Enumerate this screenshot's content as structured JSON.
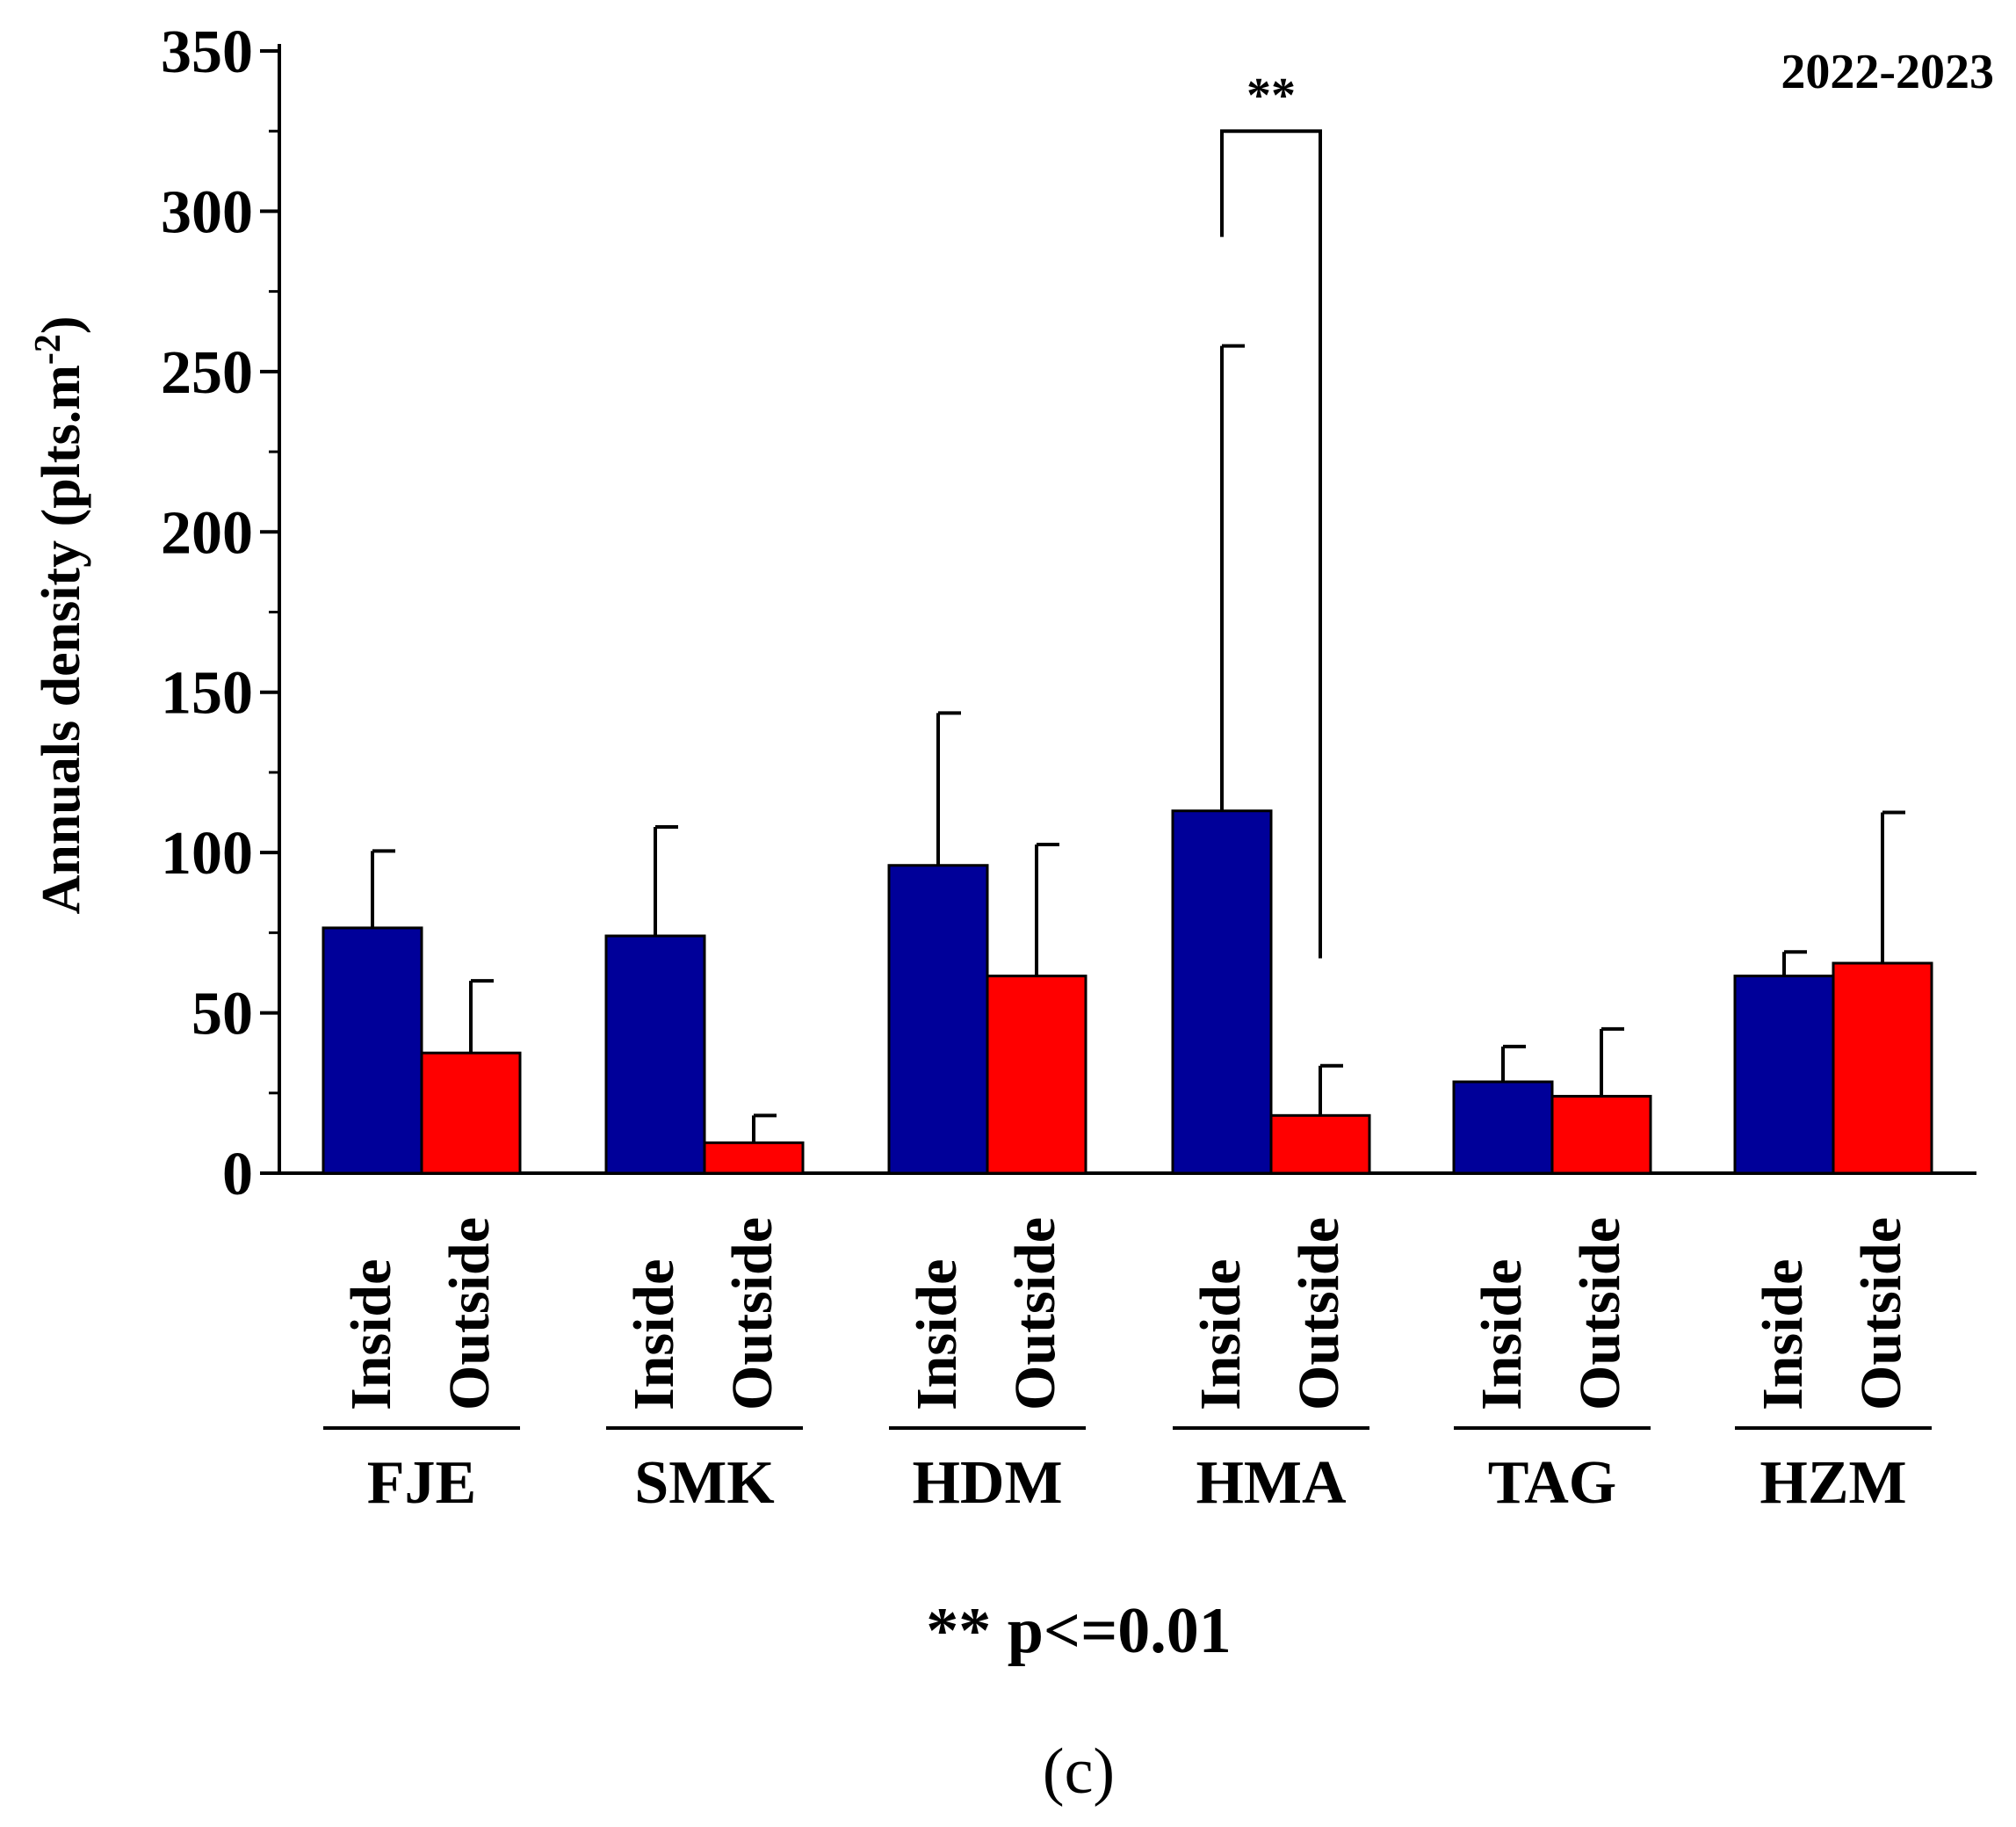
{
  "chart_data": {
    "type": "bar",
    "title": "2022-2023",
    "ylabel": "Annuals density (plts.m",
    "ylabel_superscript": "-2",
    "ylabel_suffix": ")",
    "ylim": [
      0,
      350
    ],
    "yticks": [
      0,
      50,
      100,
      150,
      200,
      250,
      300,
      350
    ],
    "categories": [
      "FJE",
      "SMK",
      "HDM",
      "HMA",
      "TAG",
      "HZM"
    ],
    "conditions": [
      "Inside",
      "Outside"
    ],
    "series": [
      {
        "name": "Inside",
        "color": "#000099",
        "values": [
          76.5,
          74,
          96,
          113,
          28.5,
          61.5
        ],
        "errors": [
          24,
          34,
          47.5,
          145,
          11,
          7.5
        ]
      },
      {
        "name": "Outside",
        "color": "#ff0000",
        "values": [
          37.5,
          9.5,
          61.5,
          18,
          24,
          65.5
        ],
        "errors": [
          22.5,
          8.5,
          41,
          15.5,
          21,
          47
        ]
      }
    ],
    "significance": [
      {
        "category": "HMA",
        "label": "**",
        "bracket_top": 325,
        "left_end": 292,
        "right_end": 67
      }
    ],
    "footnote": "** p<=0.01",
    "panel_label": "(c)"
  },
  "colors": {
    "axis": "#000000",
    "inside": "#000099",
    "outside": "#ff0000"
  }
}
